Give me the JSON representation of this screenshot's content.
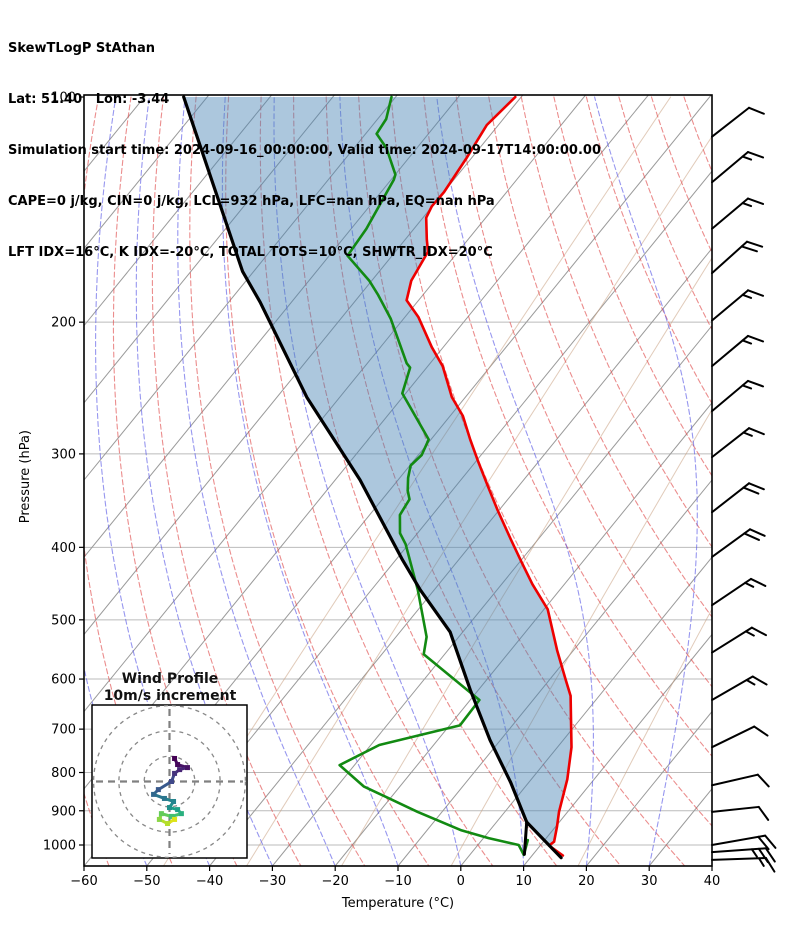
{
  "header": {
    "line1": "SkewTLogP StAthan",
    "line2": "Lat: 51.40   Lon: -3.44",
    "line3": "Simulation start time: 2024-09-16_00:00:00, Valid time: 2024-09-17T14:00:00.00",
    "line4": "CAPE=0 j/kg, CIN=0 j/kg, LCL=932 hPa, LFC=nan hPa, EQ=nan hPa",
    "line5": "LFT IDX=16°C, K IDX=-20°C, TOTAL TOTS=10°C, SHWTR_IDX=20°C"
  },
  "axes": {
    "xlabel": "Temperature (°C)",
    "ylabel": "Pressure (hPa)",
    "x_ticks": [
      -60,
      -50,
      -40,
      -30,
      -20,
      -10,
      0,
      10,
      20,
      30,
      40
    ],
    "x_tick_labels": [
      "−60",
      "−50",
      "−40",
      "−30",
      "−20",
      "−10",
      "0",
      "10",
      "20",
      "30",
      "40"
    ],
    "y_ticks": [
      100,
      200,
      300,
      400,
      500,
      600,
      700,
      800,
      900,
      1000
    ],
    "xlim": [
      -60,
      40
    ],
    "p_top": 100,
    "p_bottom": 1069
  },
  "chart_data": {
    "type": "skewt_logp",
    "title": "SkewTLogP StAthan",
    "colors": {
      "temperature": "#ee0000",
      "dewpoint": "#128a12",
      "parcel": "#000000",
      "shading": "rgba(70,130,180,0.45)",
      "dry_adiabat": "rgba(225,80,80,0.65)",
      "moist_adiabat": "rgba(95,95,230,0.65)",
      "isotherm": "#9a9a9a",
      "isobar": "#bbbbbb",
      "mixing_ratio": "rgba(200,160,130,0.55)",
      "barb": "#000000"
    },
    "series": {
      "temperature_pT": [
        [
          100,
          -91.2
        ],
        [
          109,
          -92.1
        ],
        [
          121,
          -91.0
        ],
        [
          134,
          -90.2
        ],
        [
          140,
          -90.3
        ],
        [
          145,
          -89.7
        ],
        [
          155,
          -86.8
        ],
        [
          161,
          -85.0
        ],
        [
          176,
          -83.9
        ],
        [
          187,
          -82.1
        ],
        [
          197,
          -78.0
        ],
        [
          216,
          -72.0
        ],
        [
          229,
          -67.8
        ],
        [
          252,
          -62.3
        ],
        [
          267,
          -58.1
        ],
        [
          287,
          -53.9
        ],
        [
          308,
          -49.6
        ],
        [
          332,
          -44.9
        ],
        [
          357,
          -40.3
        ],
        [
          390,
          -34.5
        ],
        [
          418,
          -29.9
        ],
        [
          448,
          -25.2
        ],
        [
          484,
          -19.5
        ],
        [
          549,
          -12.7
        ],
        [
          600,
          -7.6
        ],
        [
          632,
          -4.6
        ],
        [
          740,
          2.2
        ],
        [
          817,
          5.7
        ],
        [
          903,
          8.6
        ],
        [
          945,
          10.2
        ],
        [
          990,
          11.7
        ],
        [
          1002,
          11.4
        ],
        [
          1033,
          14.9
        ]
      ],
      "dewpoint_pT": [
        [
          100,
          -110.9
        ],
        [
          107,
          -108.9
        ],
        [
          112,
          -108.5
        ],
        [
          117,
          -105.1
        ],
        [
          127,
          -100.2
        ],
        [
          129,
          -99.8
        ],
        [
          150,
          -97.8
        ],
        [
          163,
          -97.3
        ],
        [
          176,
          -90.6
        ],
        [
          184,
          -87.3
        ],
        [
          198,
          -82.2
        ],
        [
          227,
          -73.9
        ],
        [
          230,
          -72.8
        ],
        [
          249,
          -70.7
        ],
        [
          287,
          -60.5
        ],
        [
          301,
          -59.6
        ],
        [
          311,
          -60.0
        ],
        [
          323,
          -58.8
        ],
        [
          336,
          -57.2
        ],
        [
          345,
          -55.8
        ],
        [
          362,
          -55.3
        ],
        [
          383,
          -52.9
        ],
        [
          396,
          -50.6
        ],
        [
          456,
          -42.7
        ],
        [
          527,
          -35.2
        ],
        [
          556,
          -33.4
        ],
        [
          640,
          -18.6
        ],
        [
          692,
          -18.4
        ],
        [
          735,
          -28.7
        ],
        [
          782,
          -32.4
        ],
        [
          835,
          -25.8
        ],
        [
          903,
          -13.9
        ],
        [
          956,
          -4.5
        ],
        [
          979,
          0.8
        ],
        [
          1000,
          6.5
        ],
        [
          1031,
          8.6
        ],
        [
          985,
          7.3
        ]
      ],
      "parcel_pT": [
        [
          100,
          -144.0
        ],
        [
          171,
          -112.0
        ],
        [
          188,
          -105.2
        ],
        [
          252,
          -85.4
        ],
        [
          325,
          -66.2
        ],
        [
          416,
          -49.0
        ],
        [
          456,
          -42.3
        ],
        [
          519,
          -32.1
        ],
        [
          620,
          -21.4
        ],
        [
          724,
          -11.7
        ],
        [
          825,
          -2.9
        ],
        [
          932,
          4.8
        ],
        [
          1040,
          14.9
        ]
      ],
      "parcel_branch_pT": [
        [
          932,
          4.8
        ],
        [
          1029,
          8.6
        ]
      ]
    },
    "background": {
      "isotherms_C": {
        "from": -160,
        "to": 40,
        "step": 10
      },
      "isobars_hPa": [
        200,
        300,
        400,
        500,
        600,
        700,
        800,
        900,
        1000
      ],
      "dry_adiabats_thetaC": {
        "from": -160,
        "to": 200,
        "step": 10
      },
      "moist_adiabats_startC": {
        "from": -160,
        "to": 40,
        "step": 10
      },
      "mixing_ratios_gkg": [
        0.05,
        0.2,
        0.8,
        3.2,
        12.8,
        51.2
      ]
    },
    "wind_barbs": [
      {
        "p": 113,
        "angle": 38,
        "full": 1,
        "half": 0
      },
      {
        "p": 130,
        "angle": 40,
        "full": 1,
        "half": 1
      },
      {
        "p": 150,
        "angle": 40,
        "full": 1,
        "half": 1
      },
      {
        "p": 172,
        "angle": 42,
        "full": 2,
        "half": 0
      },
      {
        "p": 199,
        "angle": 40,
        "full": 1,
        "half": 1
      },
      {
        "p": 229,
        "angle": 40,
        "full": 1,
        "half": 1
      },
      {
        "p": 263,
        "angle": 40,
        "full": 1,
        "half": 1
      },
      {
        "p": 303,
        "angle": 38,
        "full": 1,
        "half": 1
      },
      {
        "p": 359,
        "angle": 38,
        "full": 2,
        "half": 0
      },
      {
        "p": 412,
        "angle": 36,
        "full": 2,
        "half": 0
      },
      {
        "p": 478,
        "angle": 34,
        "full": 1,
        "half": 1
      },
      {
        "p": 553,
        "angle": 32,
        "full": 1,
        "half": 1
      },
      {
        "p": 640,
        "angle": 30,
        "full": 1,
        "half": 1
      },
      {
        "p": 740,
        "angle": 26,
        "full": 1,
        "half": 0
      },
      {
        "p": 832,
        "angle": 13,
        "full": 1,
        "half": 0
      },
      {
        "p": 903,
        "angle": 6,
        "full": 1,
        "half": 0
      },
      {
        "p": 1000,
        "angle": 10,
        "full": 2,
        "half": 0
      },
      {
        "p": 1022,
        "angle": 4,
        "full": 2,
        "half": 1
      },
      {
        "p": 1047,
        "angle": 2,
        "full": 1,
        "half": 1
      }
    ]
  },
  "inset": {
    "title_line1": "Wind Profile",
    "title_line2": "10m/s increment",
    "rings_ms": [
      10,
      20,
      30
    ],
    "trace_uv": [
      {
        "u": 2.0,
        "v": 9.1,
        "c": "#440154"
      },
      {
        "u": 3.2,
        "v": 6.7,
        "c": "#46085c"
      },
      {
        "u": 7.1,
        "v": 5.5,
        "c": "#471365"
      },
      {
        "u": 4.0,
        "v": 4.7,
        "c": "#482576"
      },
      {
        "u": 2.0,
        "v": 3.2,
        "c": "#45337d"
      },
      {
        "u": 0.8,
        "v": 0.0,
        "c": "#3f4889"
      },
      {
        "u": -4.4,
        "v": -3.2,
        "c": "#38598c"
      },
      {
        "u": -6.3,
        "v": -5.1,
        "c": "#31688e"
      },
      {
        "u": -2.0,
        "v": -6.7,
        "c": "#2a768e"
      },
      {
        "u": 1.6,
        "v": -7.9,
        "c": "#25848e"
      },
      {
        "u": 0.0,
        "v": -10.3,
        "c": "#21918c"
      },
      {
        "u": 3.2,
        "v": -11.1,
        "c": "#1fa088"
      },
      {
        "u": 4.7,
        "v": -12.7,
        "c": "#2ab07f"
      },
      {
        "u": 0.8,
        "v": -13.8,
        "c": "#44bf70"
      },
      {
        "u": -3.2,
        "v": -12.7,
        "c": "#64cb5b"
      },
      {
        "u": -4.0,
        "v": -15.0,
        "c": "#8bd646"
      },
      {
        "u": -0.8,
        "v": -16.6,
        "c": "#b5de2b"
      },
      {
        "u": 2.0,
        "v": -15.0,
        "c": "#dde318"
      }
    ]
  }
}
